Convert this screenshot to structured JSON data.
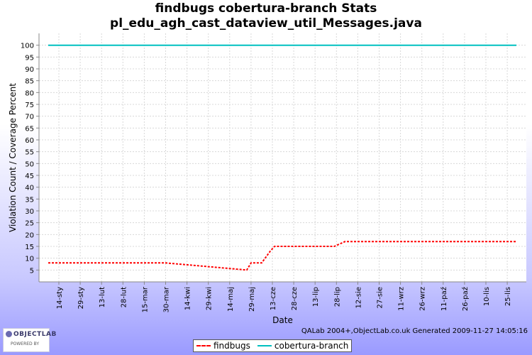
{
  "chart_data": {
    "type": "line",
    "title": "findbugs cobertura-branch  Stats pl_edu_agh_cast_dataview_util_Messages.java",
    "xlabel": "Date",
    "ylabel": "Violation Count / Coverage Percent",
    "ylim": [
      0,
      105
    ],
    "yticks": [
      5,
      10,
      15,
      20,
      25,
      30,
      35,
      40,
      45,
      50,
      55,
      60,
      65,
      70,
      75,
      80,
      85,
      90,
      95,
      100
    ],
    "x_tick_labels": [
      "14-sty",
      "29-sty",
      "13-lut",
      "28-lut",
      "15-mar",
      "30-mar",
      "14-kwi",
      "29-kwi",
      "14-maj",
      "29-maj",
      "13-cze",
      "28-cze",
      "13-lip",
      "28-lip",
      "12-sie",
      "27-sie",
      "11-wrz",
      "26-wrz",
      "11-paź",
      "26-paź",
      "10-lis",
      "25-lis"
    ],
    "x_domain": [
      0,
      22.5
    ],
    "grid": true,
    "legend_position": "bottom",
    "series": [
      {
        "name": "findbugs",
        "color": "#ff0000",
        "x": [
          -0.5,
          5.0,
          8.8,
          9.0,
          9.5,
          9.9,
          10.1,
          12.9,
          13.4,
          22.5
        ],
        "y": [
          8,
          8,
          5,
          8,
          8,
          13,
          15,
          15,
          17,
          17
        ]
      },
      {
        "name": "cobertura-branch",
        "color": "#00c0c0",
        "x": [
          -0.5,
          22.5
        ],
        "y": [
          100,
          100
        ]
      }
    ]
  },
  "footer": {
    "generated": "QALab 2004+,ObjectLab.co.uk Generated 2009-11-27 14:05:16"
  },
  "logo": {
    "text": "OBJECTLAB",
    "sub": "POWERED BY"
  }
}
